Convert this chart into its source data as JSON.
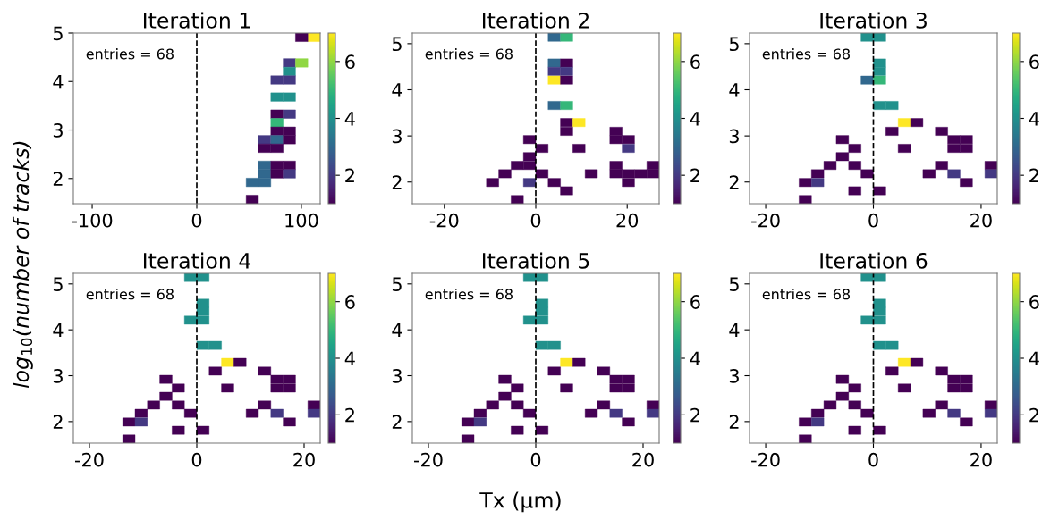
{
  "chart_data": [
    {
      "type": "scatter",
      "marker": "square",
      "title": "Iteration 1",
      "ylabel": "log$_{10}$(number of tracks)",
      "annotations": [
        "entries = 68"
      ],
      "xlim": [
        -118,
        118
      ],
      "xticks": [
        -100,
        0,
        100
      ],
      "ylim": [
        1.48,
        5.0
      ],
      "yticks": [
        2,
        3,
        4,
        5
      ],
      "clim": [
        1,
        7
      ],
      "cticks": [
        2,
        4,
        6
      ],
      "ref_lines": [
        {
          "axis": "x",
          "value": 0,
          "color": "#000000",
          "line_style": "dashed"
        }
      ],
      "x": [
        112.1,
        100.3,
        88.5,
        100.3,
        88.5,
        76.7,
        88.5,
        76.7,
        88.5,
        76.7,
        88.5,
        76.7,
        76.7,
        88.5,
        64.9,
        76.7,
        88.5,
        64.9,
        76.7,
        64.9,
        76.7,
        88.5,
        64.9,
        76.7,
        88.5,
        53.1,
        64.9,
        53.1
      ],
      "values": [
        4.912,
        4.912,
        4.384,
        4.384,
        4.208,
        4.032,
        4.032,
        3.68,
        3.68,
        3.328,
        3.328,
        3.152,
        2.976,
        2.976,
        2.8,
        2.8,
        2.8,
        2.624,
        2.624,
        2.272,
        2.272,
        2.272,
        2.096,
        2.096,
        2.096,
        1.92,
        1.92,
        1.568
      ],
      "cvalues": [
        7,
        1,
        2,
        6,
        4,
        2,
        2,
        4,
        4,
        1,
        2,
        5,
        1,
        1,
        2,
        3,
        1,
        1,
        1,
        3,
        1,
        1,
        3,
        1,
        2,
        3,
        3,
        1
      ]
    },
    {
      "type": "scatter",
      "marker": "square",
      "title": "Iteration 2",
      "annotations": [
        "entries = 68"
      ],
      "xlim": [
        -27,
        27
      ],
      "xticks": [
        -20,
        0,
        20
      ],
      "ylim": [
        1.53,
        5.23
      ],
      "yticks": [
        2,
        3,
        4,
        5
      ],
      "clim": [
        1,
        7
      ],
      "cticks": [
        2,
        4,
        6
      ],
      "ref_lines": [
        {
          "axis": "x",
          "value": 0,
          "color": "#000000",
          "line_style": "dashed"
        }
      ],
      "x": [
        4.05,
        6.75,
        4.05,
        6.75,
        4.05,
        6.75,
        4.05,
        6.75,
        4.05,
        6.75,
        6.75,
        9.45,
        6.75,
        17.55,
        -1.35,
        17.55,
        20.25,
        1.35,
        9.45,
        20.25,
        -1.35,
        -4.05,
        -1.35,
        17.55,
        25.65,
        -6.75,
        1.35,
        12.15,
        17.55,
        20.25,
        22.95,
        25.65,
        -9.45,
        -1.35,
        4.05,
        20.25,
        6.75,
        -4.05
      ],
      "values": [
        5.14,
        5.14,
        4.58,
        4.58,
        4.4,
        4.4,
        4.21,
        4.21,
        3.66,
        3.66,
        3.29,
        3.29,
        3.1,
        3.1,
        2.92,
        2.92,
        2.92,
        2.73,
        2.73,
        2.73,
        2.55,
        2.36,
        2.36,
        2.36,
        2.36,
        2.18,
        2.18,
        2.18,
        2.18,
        2.18,
        2.18,
        2.18,
        1.99,
        1.99,
        1.99,
        1.99,
        1.81,
        1.62
      ],
      "cvalues": [
        3,
        5,
        3,
        1,
        2,
        2,
        7,
        1,
        3,
        5,
        1,
        7,
        1,
        1,
        1,
        1,
        1,
        1,
        1,
        2,
        1,
        1,
        1,
        1,
        1,
        1,
        1,
        1,
        1,
        1,
        1,
        1,
        1,
        2,
        1,
        1,
        1,
        1
      ]
    },
    {
      "type": "scatter",
      "marker": "square",
      "title": "Iteration 3",
      "annotations": [
        "entries = 68"
      ],
      "xlim": [
        -23,
        23
      ],
      "xticks": [
        -20,
        0,
        20
      ],
      "ylim": [
        1.53,
        5.23
      ],
      "yticks": [
        2,
        3,
        4,
        5
      ],
      "clim": [
        1,
        7
      ],
      "cticks": [
        2,
        4,
        6
      ],
      "ref_lines": [
        {
          "axis": "x",
          "value": 0,
          "color": "#000000",
          "line_style": "dashed"
        }
      ],
      "x": [
        -1.15,
        1.15,
        1.15,
        1.15,
        -1.15,
        1.15,
        1.15,
        3.45,
        5.75,
        8.05,
        3.45,
        12.65,
        -5.75,
        14.95,
        17.25,
        -3.45,
        5.75,
        14.95,
        17.25,
        -5.75,
        -8.05,
        -3.45,
        12.65,
        21.85,
        -10.35,
        -1.15,
        10.35,
        14.95,
        21.85,
        -12.65,
        -10.35,
        17.25,
        -3.45,
        1.15,
        -12.65
      ],
      "values": [
        5.14,
        5.14,
        4.58,
        4.4,
        4.21,
        4.21,
        3.66,
        3.66,
        3.29,
        3.29,
        3.1,
        3.1,
        2.92,
        2.92,
        2.92,
        2.73,
        2.73,
        2.73,
        2.73,
        2.55,
        2.36,
        2.36,
        2.36,
        2.36,
        2.18,
        2.18,
        2.18,
        2.18,
        2.18,
        1.99,
        1.99,
        1.99,
        1.81,
        1.81,
        1.62
      ],
      "cvalues": [
        4,
        4,
        4,
        4,
        3,
        5,
        4,
        4,
        7,
        1,
        1,
        1,
        1,
        1,
        1,
        1,
        1,
        1,
        1,
        1,
        1,
        1,
        1,
        1,
        1,
        1,
        1,
        2,
        2,
        1,
        2,
        1,
        1,
        1,
        1
      ]
    },
    {
      "type": "scatter",
      "marker": "square",
      "title": "Iteration 4",
      "annotations": [
        "entries = 68"
      ],
      "xlim": [
        -23,
        23
      ],
      "xticks": [
        -20,
        0,
        20
      ],
      "ylim": [
        1.53,
        5.23
      ],
      "yticks": [
        2,
        3,
        4,
        5
      ],
      "clim": [
        1,
        7
      ],
      "cticks": [
        2,
        4,
        6
      ],
      "ref_lines": [
        {
          "axis": "x",
          "value": 0,
          "color": "#000000",
          "line_style": "dashed"
        }
      ],
      "x": [
        -1.15,
        1.15,
        1.15,
        1.15,
        -1.15,
        1.15,
        1.15,
        3.45,
        5.75,
        8.05,
        3.45,
        12.65,
        -5.75,
        14.95,
        17.25,
        -3.45,
        5.75,
        14.95,
        17.25,
        -5.75,
        -8.05,
        -3.45,
        12.65,
        21.85,
        -10.35,
        -1.15,
        10.35,
        14.95,
        21.85,
        -12.65,
        -10.35,
        17.25,
        -3.45,
        1.15,
        -12.65
      ],
      "values": [
        5.14,
        5.14,
        4.58,
        4.4,
        4.21,
        4.21,
        3.66,
        3.66,
        3.29,
        3.29,
        3.1,
        3.1,
        2.92,
        2.92,
        2.92,
        2.73,
        2.73,
        2.73,
        2.73,
        2.55,
        2.36,
        2.36,
        2.36,
        2.36,
        2.18,
        2.18,
        2.18,
        2.18,
        2.18,
        1.99,
        1.99,
        1.99,
        1.81,
        1.81,
        1.62
      ],
      "cvalues": [
        4,
        4,
        4,
        4,
        4,
        4,
        4,
        4,
        7,
        1,
        1,
        1,
        1,
        1,
        1,
        1,
        1,
        1,
        1,
        1,
        1,
        1,
        1,
        1,
        1,
        1,
        1,
        2,
        2,
        1,
        2,
        1,
        1,
        1,
        1
      ]
    },
    {
      "type": "scatter",
      "marker": "square",
      "title": "Iteration 5",
      "xlabel": "Tx (μm)",
      "annotations": [
        "entries = 68"
      ],
      "xlim": [
        -23,
        23
      ],
      "xticks": [
        -20,
        0,
        20
      ],
      "ylim": [
        1.53,
        5.23
      ],
      "yticks": [
        2,
        3,
        4,
        5
      ],
      "clim": [
        1,
        7
      ],
      "cticks": [
        2,
        4,
        6
      ],
      "ref_lines": [
        {
          "axis": "x",
          "value": 0,
          "color": "#000000",
          "line_style": "dashed"
        }
      ],
      "x": [
        -1.15,
        1.15,
        1.15,
        1.15,
        -1.15,
        1.15,
        1.15,
        3.45,
        5.75,
        8.05,
        3.45,
        12.65,
        -5.75,
        14.95,
        17.25,
        -3.45,
        5.75,
        14.95,
        17.25,
        -5.75,
        -8.05,
        -3.45,
        12.65,
        21.85,
        -10.35,
        -1.15,
        10.35,
        14.95,
        21.85,
        -12.65,
        -10.35,
        17.25,
        -3.45,
        1.15,
        -12.65
      ],
      "values": [
        5.14,
        5.14,
        4.58,
        4.4,
        4.21,
        4.21,
        3.66,
        3.66,
        3.29,
        3.29,
        3.1,
        3.1,
        2.92,
        2.92,
        2.92,
        2.73,
        2.73,
        2.73,
        2.73,
        2.55,
        2.36,
        2.36,
        2.36,
        2.36,
        2.18,
        2.18,
        2.18,
        2.18,
        2.18,
        1.99,
        1.99,
        1.99,
        1.81,
        1.81,
        1.62
      ],
      "cvalues": [
        4,
        4,
        4,
        4,
        4,
        4,
        4,
        4,
        7,
        1,
        1,
        1,
        1,
        1,
        1,
        1,
        1,
        1,
        1,
        1,
        1,
        1,
        1,
        1,
        1,
        1,
        1,
        2,
        2,
        1,
        2,
        1,
        1,
        1,
        1
      ]
    },
    {
      "type": "scatter",
      "marker": "square",
      "title": "Iteration 6",
      "annotations": [
        "entries = 68"
      ],
      "xlim": [
        -23,
        23
      ],
      "xticks": [
        -20,
        0,
        20
      ],
      "ylim": [
        1.53,
        5.23
      ],
      "yticks": [
        2,
        3,
        4,
        5
      ],
      "clim": [
        1,
        7
      ],
      "cticks": [
        2,
        4,
        6
      ],
      "ref_lines": [
        {
          "axis": "x",
          "value": 0,
          "color": "#000000",
          "line_style": "dashed"
        }
      ],
      "x": [
        -1.15,
        1.15,
        1.15,
        1.15,
        -1.15,
        1.15,
        1.15,
        3.45,
        5.75,
        8.05,
        3.45,
        12.65,
        -5.75,
        14.95,
        17.25,
        -3.45,
        5.75,
        14.95,
        17.25,
        -5.75,
        -8.05,
        -3.45,
        12.65,
        21.85,
        -10.35,
        -1.15,
        10.35,
        14.95,
        21.85,
        -12.65,
        -10.35,
        17.25,
        -3.45,
        1.15,
        -12.65
      ],
      "values": [
        5.14,
        5.14,
        4.58,
        4.4,
        4.21,
        4.21,
        3.66,
        3.66,
        3.29,
        3.29,
        3.1,
        3.1,
        2.92,
        2.92,
        2.92,
        2.73,
        2.73,
        2.73,
        2.73,
        2.55,
        2.36,
        2.36,
        2.36,
        2.36,
        2.18,
        2.18,
        2.18,
        2.18,
        2.18,
        1.99,
        1.99,
        1.99,
        1.81,
        1.81,
        1.62
      ],
      "cvalues": [
        4,
        4,
        4,
        4,
        4,
        4,
        4,
        4,
        7,
        1,
        1,
        1,
        1,
        1,
        1,
        1,
        1,
        1,
        1,
        1,
        1,
        1,
        1,
        1,
        1,
        1,
        1,
        2,
        2,
        1,
        2,
        1,
        1,
        1,
        1
      ]
    }
  ]
}
